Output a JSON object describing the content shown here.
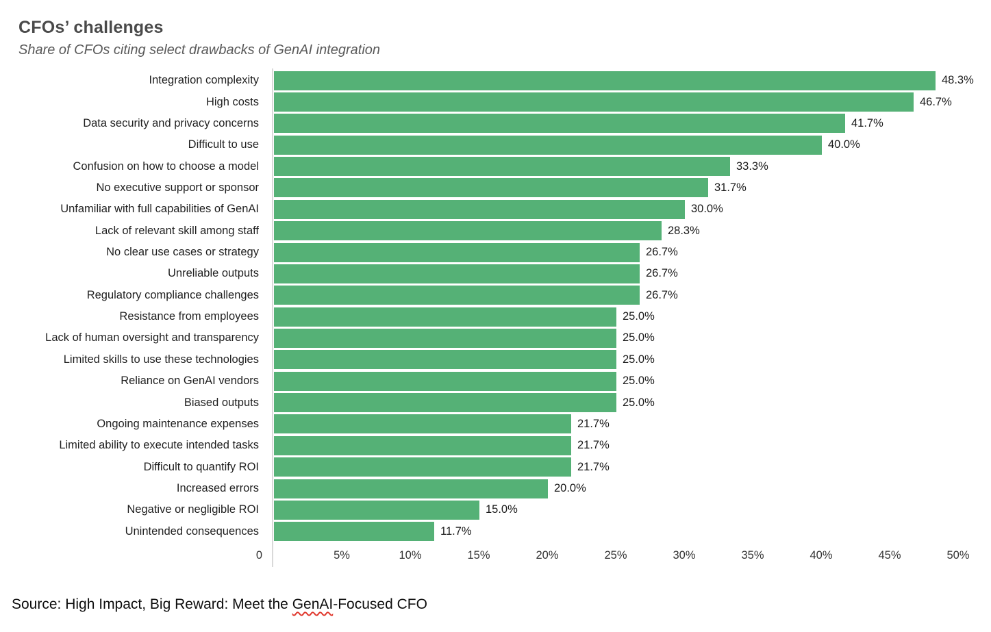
{
  "title": "CFOs’ challenges",
  "subtitle": "Share of CFOs citing select drawbacks of GenAI integration",
  "source": {
    "prefix": "Source: High Impact, Big Reward: Meet the ",
    "flagged": "GenAI",
    "suffix": "-Focused CFO"
  },
  "colors": {
    "bar": "#55b176",
    "axis_line": "#d9d9d9",
    "title": "#4a4a4a",
    "subtitle": "#595959",
    "label_text": "#1f1f1f",
    "spellcheck_squiggle": "#e0392e"
  },
  "chart_data": {
    "type": "bar",
    "orientation": "horizontal",
    "title": "CFOs’ challenges",
    "subtitle": "Share of CFOs citing select drawbacks of GenAI integration",
    "xlabel": "",
    "ylabel": "",
    "grid": false,
    "legend": null,
    "bar_color": "#55b176",
    "xlim": [
      0,
      51.2
    ],
    "x_ticks": [
      "0",
      "5%",
      "10%",
      "15%",
      "20%",
      "25%",
      "30%",
      "35%",
      "40%",
      "45%",
      "50%"
    ],
    "x_tick_values": [
      0,
      5,
      10,
      15,
      20,
      25,
      30,
      35,
      40,
      45,
      50
    ],
    "categories": [
      "Integration complexity",
      "High costs",
      "Data security and privacy concerns",
      "Difficult to use",
      "Confusion on how to choose a model",
      "No executive support or sponsor",
      "Unfamiliar with full capabilities of GenAI",
      "Lack of relevant skill among staff",
      "No clear use cases or strategy",
      "Unreliable outputs",
      "Regulatory compliance challenges",
      "Resistance from employees",
      "Lack of human oversight and transparency",
      "Limited skills to use these technologies",
      "Reliance on GenAI vendors",
      "Biased outputs",
      "Ongoing maintenance expenses",
      "Limited ability to execute intended tasks",
      "Difficult to quantify ROI",
      "Increased errors",
      "Negative or negligible ROI",
      "Unintended consequences"
    ],
    "values": [
      48.3,
      46.7,
      41.7,
      40.0,
      33.3,
      31.7,
      30.0,
      28.3,
      26.7,
      26.7,
      26.7,
      25.0,
      25.0,
      25.0,
      25.0,
      25.0,
      21.7,
      21.7,
      21.7,
      20.0,
      15.0,
      11.7
    ],
    "value_labels": [
      "48.3%",
      "46.7%",
      "41.7%",
      "40.0%",
      "33.3%",
      "31.7%",
      "30.0%",
      "28.3%",
      "26.7%",
      "26.7%",
      "26.7%",
      "25.0%",
      "25.0%",
      "25.0%",
      "25.0%",
      "25.0%",
      "21.7%",
      "21.7%",
      "21.7%",
      "20.0%",
      "15.0%",
      "11.7%"
    ]
  }
}
